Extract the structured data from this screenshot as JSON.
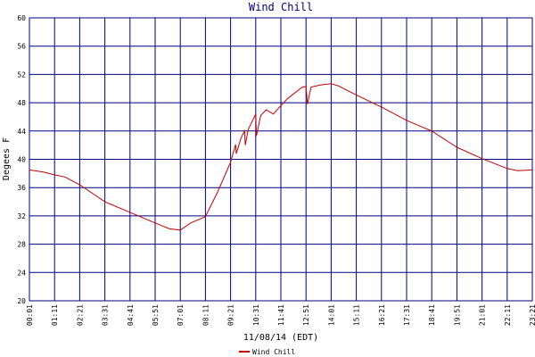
{
  "chart_data": {
    "type": "line",
    "title": "Wind Chill",
    "ylabel": "Degees F",
    "xlabel": "11/08/14 (EDT)",
    "x": [
      "00:01",
      "00:40",
      "01:11",
      "01:40",
      "02:21",
      "03:31",
      "04:41",
      "05:51",
      "06:30",
      "07:01",
      "07:30",
      "08:11",
      "08:45",
      "09:21",
      "09:35",
      "09:37",
      "09:50",
      "10:00",
      "10:02",
      "10:10",
      "10:31",
      "10:33",
      "10:45",
      "11:00",
      "11:20",
      "11:41",
      "12:00",
      "12:40",
      "12:51",
      "12:55",
      "13:05",
      "13:30",
      "14:01",
      "14:20",
      "15:11",
      "16:21",
      "17:31",
      "18:41",
      "19:51",
      "21:01",
      "22:11",
      "22:40",
      "23:21"
    ],
    "series": [
      {
        "name": "Wind Chill",
        "color": "#c00000",
        "values": [
          38.5,
          38.2,
          37.8,
          37.5,
          36.4,
          34.0,
          32.5,
          31.0,
          30.2,
          30.0,
          31.0,
          31.9,
          35.4,
          39.6,
          42.1,
          40.8,
          43.0,
          44.0,
          42.0,
          44.2,
          46.4,
          43.3,
          46.2,
          47.0,
          46.4,
          47.6,
          48.6,
          50.2,
          50.3,
          47.8,
          50.2,
          50.5,
          50.7,
          50.4,
          49.1,
          47.4,
          45.5,
          44.0,
          41.7,
          40.1,
          38.7,
          38.4,
          38.5
        ]
      }
    ],
    "xlim": [
      "00:01",
      "23:21"
    ],
    "xticks": [
      "00:01",
      "01:11",
      "02:21",
      "03:31",
      "04:41",
      "05:51",
      "07:01",
      "08:11",
      "09:21",
      "10:31",
      "11:41",
      "12:51",
      "14:01",
      "15:11",
      "16:21",
      "17:31",
      "18:41",
      "19:51",
      "21:01",
      "22:11",
      "23:21"
    ],
    "ylim": [
      20,
      60
    ],
    "yticks": [
      20,
      24,
      28,
      32,
      36,
      40,
      44,
      48,
      52,
      56,
      60
    ],
    "grid": true,
    "grid_color": "#000080"
  }
}
